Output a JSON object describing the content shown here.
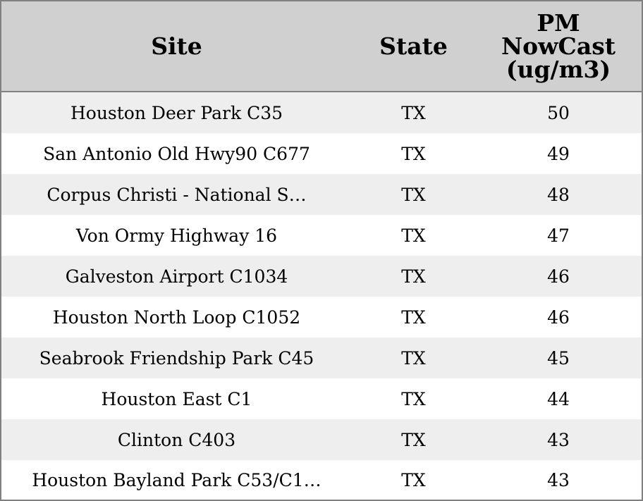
{
  "chart_data": {
    "type": "table",
    "columns": [
      "Site",
      "State",
      "PM NowCast (ug/m3)"
    ],
    "header_lines": [
      [
        "Site"
      ],
      [
        "State"
      ],
      [
        "PM",
        "NowCast",
        "(ug/m3)"
      ]
    ],
    "rows": [
      [
        "Houston Deer Park C35",
        "TX",
        "50"
      ],
      [
        "San Antonio Old Hwy90 C677",
        "TX",
        "49"
      ],
      [
        "Corpus Christi - National S…",
        "TX",
        "48"
      ],
      [
        "Von Ormy Highway 16",
        "TX",
        "47"
      ],
      [
        "Galveston Airport C1034",
        "TX",
        "46"
      ],
      [
        "Houston North Loop C1052",
        "TX",
        "46"
      ],
      [
        "Seabrook Friendship Park C45",
        "TX",
        "45"
      ],
      [
        "Houston East C1",
        "TX",
        "44"
      ],
      [
        "Clinton C403",
        "TX",
        "43"
      ],
      [
        "Houston Bayland Park C53/C1…",
        "TX",
        "43"
      ]
    ],
    "colors": {
      "header_bg": "#d0d0d0",
      "row_band": "#eeeeee",
      "row_plain": "#ffffff",
      "border": "#808080"
    }
  }
}
